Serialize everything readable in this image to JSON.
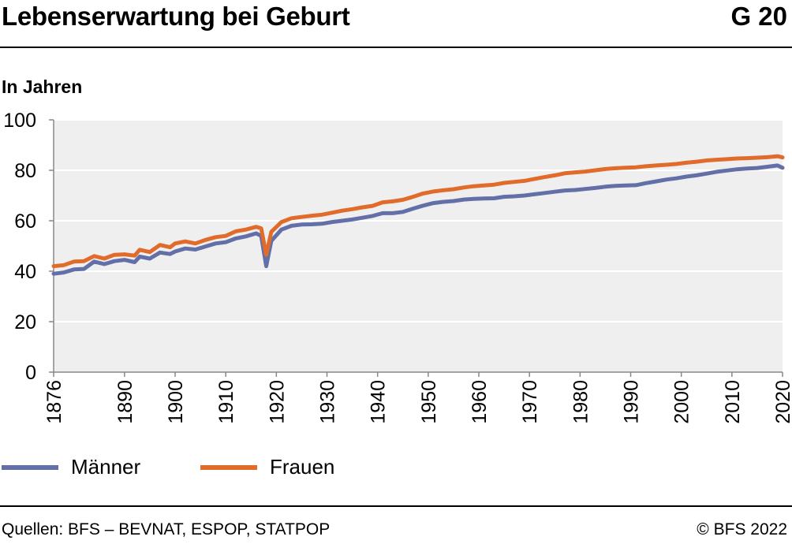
{
  "header": {
    "title": "Lebenserwartung bei Geburt",
    "chart_id": "G 20",
    "unit_label": "In Jahren"
  },
  "footer": {
    "source": "Quellen: BFS – BEVNAT, ESPOP, STATPOP",
    "copyright": "© BFS 2022"
  },
  "colors": {
    "men": "#6370a8",
    "women": "#e06b2a",
    "plot_background": "#efefef",
    "grid": "#ffffff",
    "axis": "#888888"
  },
  "chart_data": {
    "type": "line",
    "title": "Lebenserwartung bei Geburt",
    "ylabel": "In Jahren",
    "xlabel": "",
    "xlim": [
      1876,
      2020
    ],
    "ylim": [
      0,
      100
    ],
    "y_ticks": [
      0,
      20,
      40,
      60,
      80,
      100
    ],
    "x_ticks": [
      1876,
      1890,
      1900,
      1910,
      1920,
      1930,
      1940,
      1950,
      1960,
      1970,
      1980,
      1990,
      2000,
      2010,
      2020
    ],
    "grid": true,
    "legend_position": "bottom",
    "series": [
      {
        "name": "Männer",
        "color": "#6370a8",
        "points": [
          [
            1876,
            39.0
          ],
          [
            1878,
            39.5
          ],
          [
            1880,
            40.7
          ],
          [
            1882,
            40.9
          ],
          [
            1884,
            43.8
          ],
          [
            1886,
            42.8
          ],
          [
            1888,
            44.0
          ],
          [
            1890,
            44.5
          ],
          [
            1892,
            43.6
          ],
          [
            1893,
            45.8
          ],
          [
            1895,
            45.0
          ],
          [
            1897,
            47.4
          ],
          [
            1899,
            46.8
          ],
          [
            1900,
            47.8
          ],
          [
            1902,
            49.0
          ],
          [
            1904,
            48.6
          ],
          [
            1906,
            49.8
          ],
          [
            1908,
            51.0
          ],
          [
            1910,
            51.5
          ],
          [
            1912,
            53.0
          ],
          [
            1914,
            53.8
          ],
          [
            1916,
            55.0
          ],
          [
            1917,
            54.0
          ],
          [
            1918,
            42.0
          ],
          [
            1919,
            52.0
          ],
          [
            1921,
            56.5
          ],
          [
            1923,
            58.0
          ],
          [
            1925,
            58.5
          ],
          [
            1927,
            58.6
          ],
          [
            1929,
            58.8
          ],
          [
            1931,
            59.5
          ],
          [
            1933,
            60.0
          ],
          [
            1935,
            60.5
          ],
          [
            1937,
            61.2
          ],
          [
            1939,
            61.9
          ],
          [
            1941,
            63.0
          ],
          [
            1943,
            63.0
          ],
          [
            1945,
            63.5
          ],
          [
            1947,
            64.8
          ],
          [
            1949,
            66.0
          ],
          [
            1951,
            67.0
          ],
          [
            1953,
            67.5
          ],
          [
            1955,
            67.8
          ],
          [
            1957,
            68.4
          ],
          [
            1959,
            68.7
          ],
          [
            1961,
            68.8
          ],
          [
            1963,
            68.9
          ],
          [
            1965,
            69.5
          ],
          [
            1967,
            69.7
          ],
          [
            1969,
            70.0
          ],
          [
            1971,
            70.5
          ],
          [
            1973,
            71.0
          ],
          [
            1975,
            71.5
          ],
          [
            1977,
            72.0
          ],
          [
            1979,
            72.2
          ],
          [
            1981,
            72.6
          ],
          [
            1983,
            73.0
          ],
          [
            1985,
            73.5
          ],
          [
            1987,
            73.8
          ],
          [
            1989,
            74.0
          ],
          [
            1991,
            74.1
          ],
          [
            1993,
            74.9
          ],
          [
            1995,
            75.6
          ],
          [
            1997,
            76.3
          ],
          [
            1999,
            76.8
          ],
          [
            2001,
            77.5
          ],
          [
            2003,
            78.0
          ],
          [
            2005,
            78.7
          ],
          [
            2007,
            79.4
          ],
          [
            2009,
            79.9
          ],
          [
            2011,
            80.4
          ],
          [
            2013,
            80.7
          ],
          [
            2015,
            80.9
          ],
          [
            2017,
            81.4
          ],
          [
            2019,
            81.9
          ],
          [
            2020,
            81.0
          ]
        ]
      },
      {
        "name": "Frauen",
        "color": "#e06b2a",
        "points": [
          [
            1876,
            42.0
          ],
          [
            1878,
            42.4
          ],
          [
            1880,
            43.8
          ],
          [
            1882,
            44.0
          ],
          [
            1884,
            46.0
          ],
          [
            1886,
            45.0
          ],
          [
            1888,
            46.5
          ],
          [
            1890,
            46.7
          ],
          [
            1892,
            46.2
          ],
          [
            1893,
            48.5
          ],
          [
            1895,
            47.6
          ],
          [
            1897,
            50.4
          ],
          [
            1899,
            49.5
          ],
          [
            1900,
            51.0
          ],
          [
            1902,
            51.8
          ],
          [
            1904,
            51.0
          ],
          [
            1906,
            52.4
          ],
          [
            1908,
            53.5
          ],
          [
            1910,
            54.0
          ],
          [
            1912,
            55.8
          ],
          [
            1914,
            56.5
          ],
          [
            1916,
            57.6
          ],
          [
            1917,
            57.0
          ],
          [
            1918,
            46.5
          ],
          [
            1919,
            55.6
          ],
          [
            1921,
            59.5
          ],
          [
            1923,
            61.0
          ],
          [
            1925,
            61.5
          ],
          [
            1927,
            62.0
          ],
          [
            1929,
            62.4
          ],
          [
            1931,
            63.2
          ],
          [
            1933,
            64.0
          ],
          [
            1935,
            64.6
          ],
          [
            1937,
            65.3
          ],
          [
            1939,
            65.9
          ],
          [
            1941,
            67.3
          ],
          [
            1943,
            67.7
          ],
          [
            1945,
            68.3
          ],
          [
            1947,
            69.5
          ],
          [
            1949,
            70.8
          ],
          [
            1951,
            71.6
          ],
          [
            1953,
            72.1
          ],
          [
            1955,
            72.5
          ],
          [
            1957,
            73.2
          ],
          [
            1959,
            73.7
          ],
          [
            1961,
            74.0
          ],
          [
            1963,
            74.3
          ],
          [
            1965,
            75.0
          ],
          [
            1967,
            75.4
          ],
          [
            1969,
            75.8
          ],
          [
            1971,
            76.6
          ],
          [
            1973,
            77.3
          ],
          [
            1975,
            78.0
          ],
          [
            1977,
            78.8
          ],
          [
            1979,
            79.2
          ],
          [
            1981,
            79.5
          ],
          [
            1983,
            80.0
          ],
          [
            1985,
            80.5
          ],
          [
            1987,
            80.8
          ],
          [
            1989,
            81.0
          ],
          [
            1991,
            81.2
          ],
          [
            1993,
            81.6
          ],
          [
            1995,
            81.9
          ],
          [
            1997,
            82.2
          ],
          [
            1999,
            82.5
          ],
          [
            2001,
            83.0
          ],
          [
            2003,
            83.4
          ],
          [
            2005,
            83.9
          ],
          [
            2007,
            84.2
          ],
          [
            2009,
            84.4
          ],
          [
            2011,
            84.7
          ],
          [
            2013,
            84.8
          ],
          [
            2015,
            85.0
          ],
          [
            2017,
            85.2
          ],
          [
            2019,
            85.6
          ],
          [
            2020,
            85.1
          ]
        ]
      }
    ]
  }
}
